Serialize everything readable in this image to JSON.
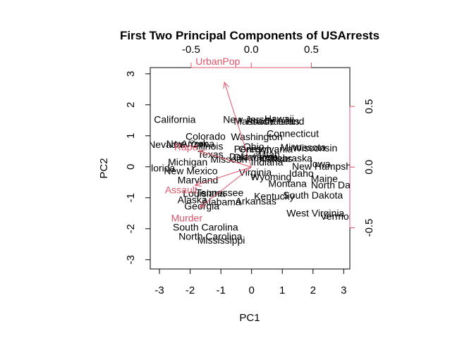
{
  "chart_data": {
    "type": "biplot",
    "title": "First Two Principal Components of USArrests",
    "xlabel": "PC1",
    "ylabel": "PC2",
    "xlim": [
      -3.3,
      3.2
    ],
    "ylim": [
      -3.3,
      3.2
    ],
    "xticks": [
      "-3",
      "-2",
      "-1",
      "0",
      "1",
      "2",
      "3"
    ],
    "yticks": [
      "-3",
      "-2",
      "-1",
      "0",
      "1",
      "2",
      "3"
    ],
    "top_ticks": [
      "-0.5",
      "0.0",
      "0.5"
    ],
    "right_ticks": [
      "-0.5",
      "0.0",
      "0.5"
    ],
    "loading_lim": [
      -0.84,
      0.82
    ],
    "loading_color": "#DF536B",
    "points": [
      {
        "label": "Alabama",
        "x": -0.98,
        "y": -1.13
      },
      {
        "label": "Alaska",
        "x": -1.93,
        "y": -1.06
      },
      {
        "label": "Arizona",
        "x": -1.75,
        "y": 0.74
      },
      {
        "label": "Arkansas",
        "x": 0.14,
        "y": -1.11
      },
      {
        "label": "California",
        "x": -2.5,
        "y": 1.53
      },
      {
        "label": "Colorado",
        "x": -1.5,
        "y": 0.98
      },
      {
        "label": "Connecticut",
        "x": 1.34,
        "y": 1.08
      },
      {
        "label": "Delaware",
        "x": -0.05,
        "y": 0.32
      },
      {
        "label": "Florida",
        "x": -2.98,
        "y": -0.04
      },
      {
        "label": "Georgia",
        "x": -1.62,
        "y": -1.27
      },
      {
        "label": "Hawaii",
        "x": 0.9,
        "y": 1.55
      },
      {
        "label": "Idaho",
        "x": 1.62,
        "y": -0.21
      },
      {
        "label": "Illinois",
        "x": -1.37,
        "y": 0.67
      },
      {
        "label": "Indiana",
        "x": 0.5,
        "y": 0.15
      },
      {
        "label": "Iowa",
        "x": 2.23,
        "y": 0.1
      },
      {
        "label": "Kansas",
        "x": 0.79,
        "y": 0.27
      },
      {
        "label": "Kentucky",
        "x": 0.74,
        "y": -0.95
      },
      {
        "label": "Louisiana",
        "x": -1.55,
        "y": -0.86
      },
      {
        "label": "Maine",
        "x": 2.37,
        "y": -0.38
      },
      {
        "label": "Maryland",
        "x": -1.75,
        "y": -0.43
      },
      {
        "label": "Massachusetts",
        "x": 0.49,
        "y": 1.47
      },
      {
        "label": "Michigan",
        "x": -2.08,
        "y": 0.15
      },
      {
        "label": "Minnesota",
        "x": 1.68,
        "y": 0.63
      },
      {
        "label": "Mississippi",
        "x": -0.99,
        "y": -2.37
      },
      {
        "label": "Missouri",
        "x": -0.74,
        "y": 0.25
      },
      {
        "label": "Montana",
        "x": 1.17,
        "y": -0.54
      },
      {
        "label": "Nebraska",
        "x": 1.29,
        "y": 0.28
      },
      {
        "label": "Nevada",
        "x": -2.81,
        "y": 0.72
      },
      {
        "label": "New Hampshire",
        "x": 2.46,
        "y": 0.02
      },
      {
        "label": "New Jersey",
        "x": -0.09,
        "y": 1.53
      },
      {
        "label": "New Mexico",
        "x": -1.98,
        "y": -0.13
      },
      {
        "label": "New York",
        "x": -2.1,
        "y": 0.75
      },
      {
        "label": "North Carolina",
        "x": -1.34,
        "y": -2.24
      },
      {
        "label": "North Dakota",
        "x": 2.88,
        "y": -0.58
      },
      {
        "label": "Ohio",
        "x": 0.07,
        "y": 0.65
      },
      {
        "label": "Oklahoma",
        "x": 0.13,
        "y": 0.31
      },
      {
        "label": "Oregon",
        "x": 0.12,
        "y": 0.58
      },
      {
        "label": "Pennsylvania",
        "x": 0.38,
        "y": 0.58
      },
      {
        "label": "Rhode Island",
        "x": 0.77,
        "y": 1.47
      },
      {
        "label": "South Carolina",
        "x": -1.5,
        "y": -1.95
      },
      {
        "label": "South Dakota",
        "x": 2.0,
        "y": -0.91
      },
      {
        "label": "Tennessee",
        "x": -1.04,
        "y": -0.83
      },
      {
        "label": "Texas",
        "x": -1.34,
        "y": 0.4
      },
      {
        "label": "Utah",
        "x": 0.58,
        "y": 0.4
      },
      {
        "label": "Vermont",
        "x": 2.84,
        "y": -1.6
      },
      {
        "label": "Virginia",
        "x": 0.12,
        "y": -0.18
      },
      {
        "label": "Washington",
        "x": 0.17,
        "y": 0.97
      },
      {
        "label": "West Virginia",
        "x": 2.08,
        "y": -1.49
      },
      {
        "label": "Wisconsin",
        "x": 2.06,
        "y": 0.61
      },
      {
        "label": "Wyoming",
        "x": 0.63,
        "y": -0.32
      }
    ],
    "loadings": [
      {
        "label": "Murder",
        "x": -0.536,
        "y": -0.418
      },
      {
        "label": "Assault",
        "x": -0.583,
        "y": -0.188
      },
      {
        "label": "UrbanPop",
        "x": -0.278,
        "y": 0.873
      },
      {
        "label": "Rape",
        "x": -0.543,
        "y": 0.167
      }
    ]
  }
}
